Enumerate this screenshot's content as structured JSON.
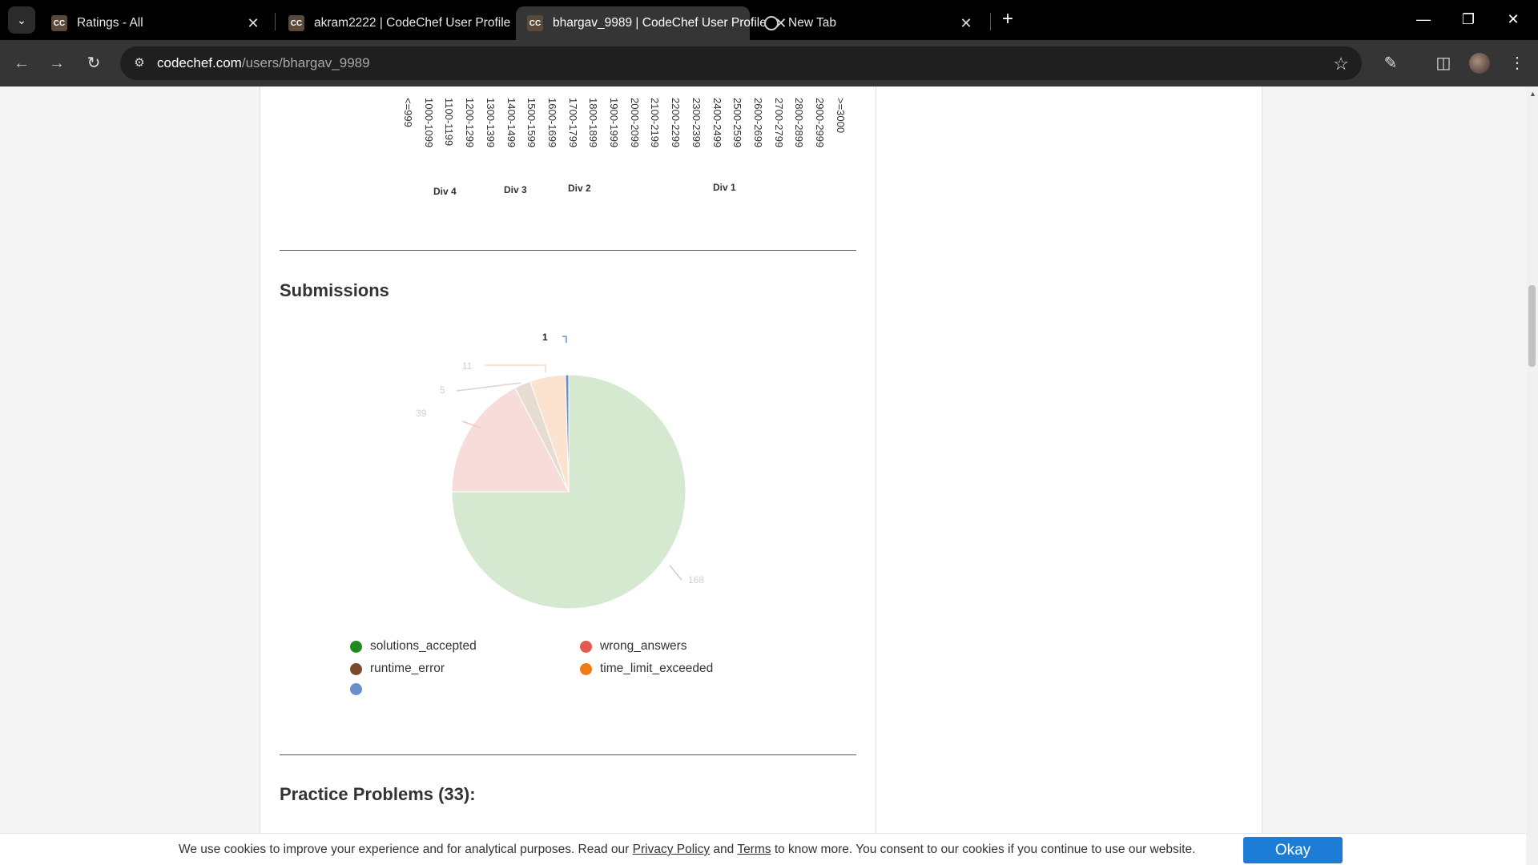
{
  "browser": {
    "tabs": [
      {
        "title": "Ratings - All",
        "icon": "codechef-favicon"
      },
      {
        "title": "akram2222 | CodeChef User Profile",
        "icon": "codechef-favicon"
      },
      {
        "title": "bhargav_9989 | CodeChef User Profile",
        "icon": "codechef-favicon"
      },
      {
        "title": "New Tab",
        "icon": "globe-icon"
      }
    ],
    "active_tab_index": 2,
    "url_host": "codechef.com",
    "url_path": "/users/bhargav_9989"
  },
  "rating_distribution": {
    "bins": [
      "<=999",
      "1000-1099",
      "1100-1199",
      "1200-1299",
      "1300-1399",
      "1400-1499",
      "1500-1599",
      "1600-1699",
      "1700-1799",
      "1800-1899",
      "1900-1999",
      "2000-2099",
      "2100-2199",
      "2200-2299",
      "2300-2399",
      "2400-2499",
      "2500-2599",
      "2600-2699",
      "2700-2799",
      "2800-2899",
      "2900-2999",
      ">=3000"
    ],
    "divisions": [
      "Div 4",
      "Div 3",
      "Div 2",
      "Div 1"
    ]
  },
  "submissions": {
    "title": "Submissions",
    "chart_data": {
      "type": "pie",
      "slices": [
        {
          "name": "solutions_accepted",
          "value": 168,
          "color": "#d5e8d0",
          "legend_color": "#1f8a1f"
        },
        {
          "name": "wrong_answers",
          "value": 39,
          "color": "#f8dcd9",
          "legend_color": "#e05a4e"
        },
        {
          "name": "runtime_error",
          "value": 5,
          "color": "#e6dcd2",
          "legend_color": "#7a4a2a"
        },
        {
          "name": "time_limit_exceeded",
          "value": 11,
          "color": "#fbe3d0",
          "legend_color": "#f07a18"
        },
        {
          "name": "",
          "value": 1,
          "color": "#6a8fcc",
          "legend_color": "#6a8fcc"
        }
      ]
    }
  },
  "practice": {
    "title": "Practice Problems (33):"
  },
  "cookie": {
    "text_before": "We use cookies to improve your experience and for analytical purposes. Read our ",
    "privacy_link": "Privacy Policy",
    "and": " and ",
    "terms_link": "Terms",
    "text_after": " to know more. You consent to our cookies if you continue to use our website.",
    "okay_label": "Okay"
  }
}
